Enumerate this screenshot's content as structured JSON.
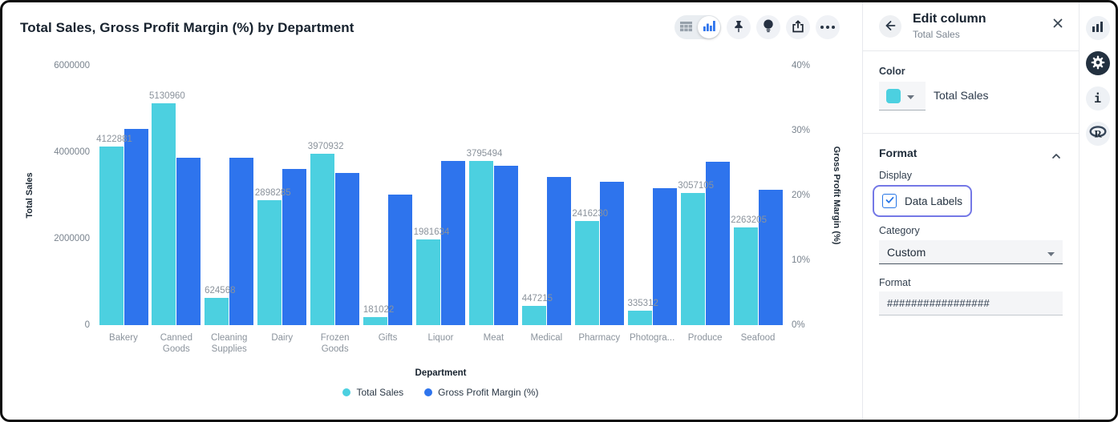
{
  "chart": {
    "title": "Total Sales, Gross Profit Margin (%) by Department",
    "x_axis_title": "Department",
    "left_axis": {
      "title": "Total Sales"
    },
    "right_axis": {
      "title": "Gross Profit Margin (%)"
    },
    "legend": [
      {
        "label": "Total Sales",
        "color": "#4CD0E0"
      },
      {
        "label": "Gross Profit Margin (%)",
        "color": "#2E74ED"
      }
    ]
  },
  "chart_data": {
    "type": "bar",
    "categories": [
      "Bakery",
      "Canned Goods",
      "Cleaning Supplies",
      "Dairy",
      "Frozen Goods",
      "Gifts",
      "Liquor",
      "Meat",
      "Medical",
      "Pharmacy",
      "Photography",
      "Produce",
      "Seafood"
    ],
    "category_labels_display": [
      "Bakery",
      "Canned Goods",
      "Cleaning Supplies",
      "Dairy",
      "Frozen Goods",
      "Gifts",
      "Liquor",
      "Meat",
      "Medical",
      "Pharmacy",
      "Photogra...",
      "Produce",
      "Seafood"
    ],
    "series": [
      {
        "name": "Total Sales",
        "axis": "left",
        "color": "#4CD0E0",
        "data_labels": true,
        "values": [
          4122881,
          5130960,
          624568,
          2898285,
          3970932,
          181022,
          1981634,
          3795494,
          447215,
          2416230,
          335312,
          3057105,
          2263205
        ]
      },
      {
        "name": "Gross Profit Margin (%)",
        "axis": "right",
        "color": "#2E74ED",
        "data_labels": false,
        "values": [
          30.2,
          25.8,
          25.8,
          24.1,
          23.5,
          20.1,
          25.3,
          24.6,
          22.9,
          22.1,
          21.1,
          25.2,
          20.9
        ]
      }
    ],
    "left_ylim": [
      0,
      6000000
    ],
    "right_ylim": [
      0,
      40
    ],
    "left_axis_ticks": [
      {
        "label": "0",
        "v": 0
      },
      {
        "label": "2000000",
        "v": 2000000
      },
      {
        "label": "4000000",
        "v": 4000000
      },
      {
        "label": "6000000",
        "v": 6000000
      }
    ],
    "right_axis_ticks": [
      {
        "label": "0%",
        "v": 0
      },
      {
        "label": "10%",
        "v": 10
      },
      {
        "label": "20%",
        "v": 20
      },
      {
        "label": "30%",
        "v": 30
      },
      {
        "label": "40%",
        "v": 40
      }
    ],
    "grid": false,
    "legend_position": "bottom"
  },
  "toolbar": {
    "icons": [
      "table-view",
      "chart-view",
      "pin",
      "lightbulb",
      "share",
      "more"
    ]
  },
  "panel": {
    "title": "Edit column",
    "subtitle": "Total Sales",
    "color_section": {
      "label": "Color",
      "swatch_color": "#4CD0E0",
      "value": "Total Sales"
    },
    "format_section": {
      "title": "Format",
      "display_label": "Display",
      "data_labels_checkbox": {
        "label": "Data Labels",
        "checked": true
      },
      "category_label": "Category",
      "category_value": "Custom",
      "format_label": "Format",
      "format_value": "#################"
    }
  },
  "rail": {
    "icons": [
      "chart-icon",
      "gear-icon",
      "info-icon",
      "r-logo-icon"
    ],
    "selected": "gear-icon"
  }
}
